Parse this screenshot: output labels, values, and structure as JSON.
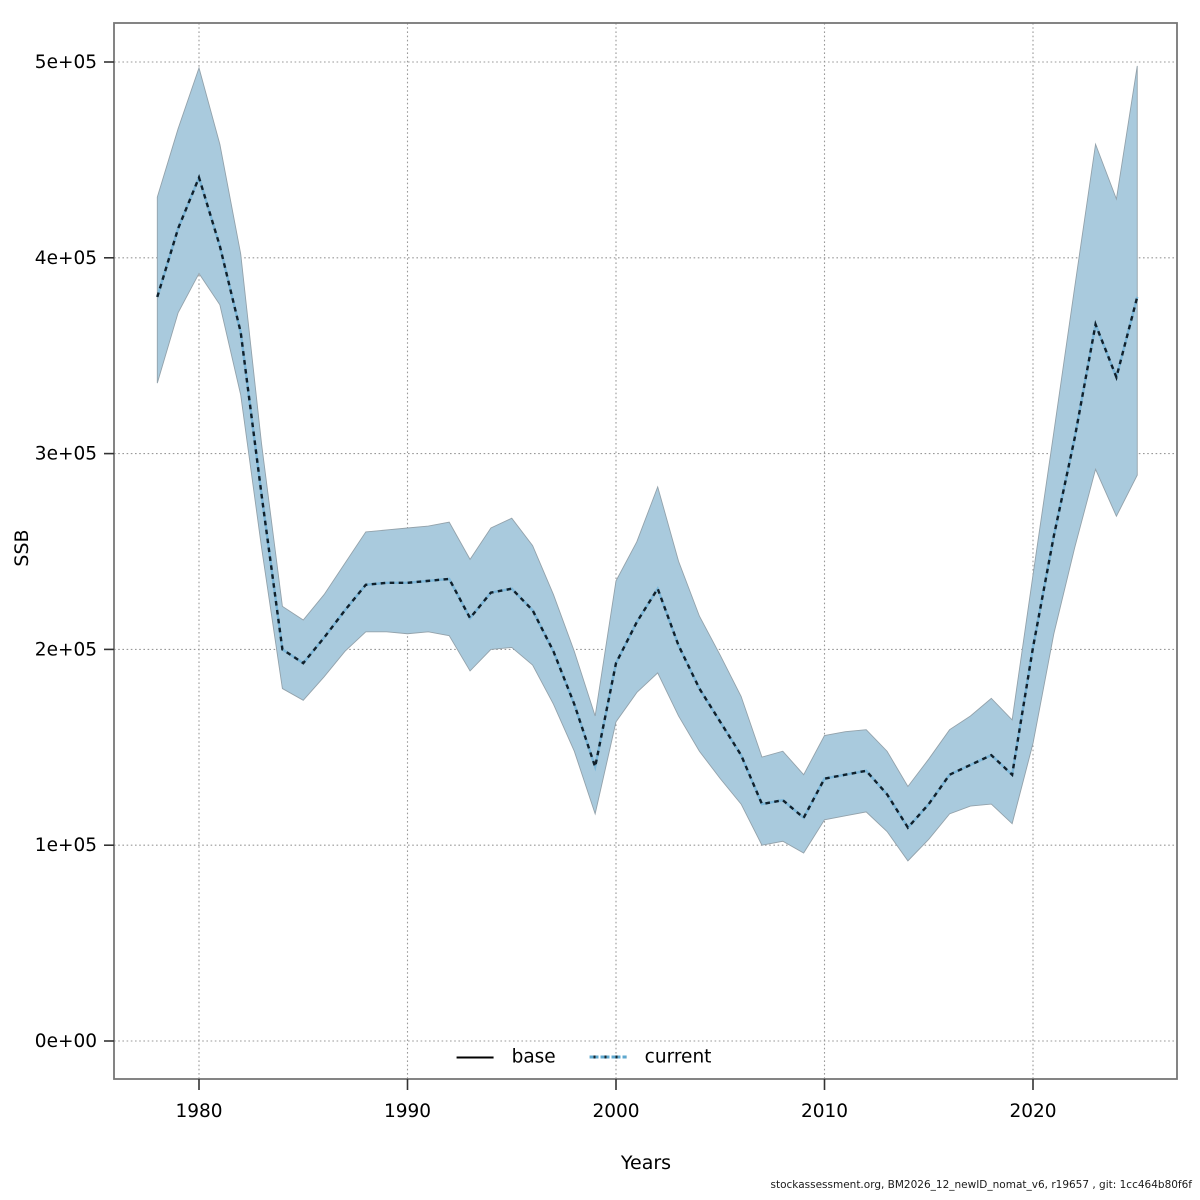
{
  "footer": {
    "text": "stockassessment.org, BM2026_12_newID_nomat_v6, r19657 , git: 1cc464b80f6f"
  },
  "chart_data": {
    "type": "line",
    "title": "",
    "xlabel": "Years",
    "ylabel": "SSB",
    "grid": true,
    "legend_position": "bottom-center",
    "xlim": [
      1975.9,
      2026.9
    ],
    "ylim": [
      -19000,
      520000
    ],
    "x_ticks": [
      1980,
      1990,
      2000,
      2010,
      2020
    ],
    "y_ticks": [
      {
        "label": "0e+00",
        "value": 0
      },
      {
        "label": "1e+05",
        "value": 100000
      },
      {
        "label": "2e+05",
        "value": 200000
      },
      {
        "label": "3e+05",
        "value": 300000
      },
      {
        "label": "4e+05",
        "value": 400000
      },
      {
        "label": "5e+05",
        "value": 500000
      }
    ],
    "years": [
      1978,
      1979,
      1980,
      1981,
      1982,
      1983,
      1984,
      1985,
      1986,
      1987,
      1988,
      1989,
      1990,
      1991,
      1992,
      1993,
      1994,
      1995,
      1996,
      1997,
      1998,
      1999,
      2000,
      2001,
      2002,
      2003,
      2004,
      2005,
      2006,
      2007,
      2008,
      2009,
      2010,
      2011,
      2012,
      2013,
      2014,
      2015,
      2016,
      2017,
      2018,
      2019,
      2020,
      2021,
      2022,
      2023,
      2024,
      2025
    ],
    "series": [
      {
        "name": "base",
        "line_style": "solid",
        "color": "#000000"
      },
      {
        "name": "current",
        "line_style": "dotted",
        "color": "#10202b",
        "underlay_color": "#7db8da",
        "band_color": "#a9cadd",
        "band_edge_color": "#93a2ab",
        "ssb": [
          380000,
          415000,
          441000,
          406000,
          362000,
          279000,
          200000,
          193000,
          206000,
          220000,
          233000,
          234000,
          234000,
          235000,
          236000,
          216000,
          229000,
          231000,
          220000,
          199000,
          172000,
          140000,
          193000,
          214000,
          231000,
          202000,
          180000,
          163000,
          146000,
          121000,
          123000,
          114000,
          134000,
          136000,
          138000,
          126000,
          109000,
          121000,
          136000,
          141000,
          146000,
          136000,
          201000,
          258000,
          308000,
          366000,
          339000,
          380000
        ],
        "ci_lower": [
          336000,
          372000,
          392000,
          376000,
          330000,
          252000,
          180000,
          174000,
          186000,
          199000,
          209000,
          209000,
          208000,
          209000,
          207000,
          189000,
          200000,
          201000,
          192000,
          172000,
          148000,
          116000,
          163000,
          178000,
          188000,
          166000,
          148000,
          134000,
          121000,
          100000,
          102000,
          96000,
          113000,
          115000,
          117000,
          107000,
          92000,
          103000,
          116000,
          120000,
          121000,
          111000,
          152000,
          208000,
          252000,
          292000,
          268000,
          289000
        ],
        "ci_upper": [
          431000,
          466000,
          497000,
          458000,
          402000,
          305000,
          222000,
          215000,
          228000,
          244000,
          260000,
          261000,
          262000,
          263000,
          265000,
          246000,
          262000,
          267000,
          253000,
          228000,
          199000,
          166000,
          235000,
          255000,
          283000,
          245000,
          217000,
          197000,
          176000,
          145000,
          148000,
          136000,
          156000,
          158000,
          159000,
          148000,
          130000,
          144000,
          159000,
          166000,
          175000,
          164000,
          238000,
          311000,
          385000,
          458000,
          430000,
          498000
        ]
      }
    ]
  },
  "style": {
    "grid_color": "#999999",
    "box_color": "#777777",
    "tick_color": "#333333",
    "text_color": "#000000"
  }
}
